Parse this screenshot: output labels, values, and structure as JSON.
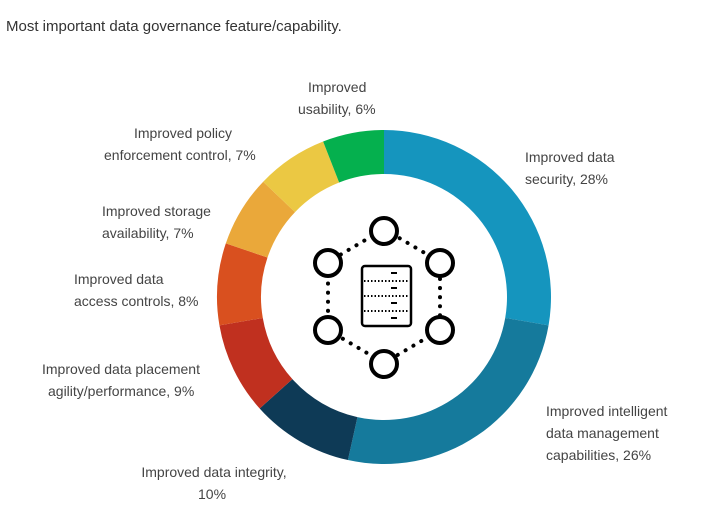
{
  "chart_data": {
    "type": "pie",
    "subtype": "donut",
    "title": "Most important data governance feature/capability.",
    "unit": "%",
    "slices": [
      {
        "label_lines": [
          "Improved data",
          "security, 28%"
        ],
        "name": "Improved data security",
        "value": 28,
        "color": "#1595be"
      },
      {
        "label_lines": [
          "Improved intelligent",
          "data management",
          "capabilities, 26%"
        ],
        "name": "Improved intelligent data management capabilities",
        "value": 26,
        "color": "#157a9c"
      },
      {
        "label_lines": [
          "Improved data integrity,",
          "10%"
        ],
        "name": "Improved data integrity",
        "value": 10,
        "color": "#0e3a56"
      },
      {
        "label_lines": [
          "Improved data placement",
          "agility/performance, 9%"
        ],
        "name": "Improved data placement agility/performance",
        "value": 9,
        "color": "#c0301f"
      },
      {
        "label_lines": [
          "Improved data",
          "access controls, 8%"
        ],
        "name": "Improved data access controls",
        "value": 8,
        "color": "#d9501f"
      },
      {
        "label_lines": [
          "Improved storage",
          "availability, 7%"
        ],
        "name": "Improved storage availability",
        "value": 7,
        "color": "#eaa83a"
      },
      {
        "label_lines": [
          "Improved policy",
          "enforcement control, 7%"
        ],
        "name": "Improved policy enforcement control",
        "value": 7,
        "color": "#ebc843"
      },
      {
        "label_lines": [
          "Improved",
          "usability, 6%"
        ],
        "name": "Improved usability",
        "value": 6,
        "color": "#05b04e"
      }
    ],
    "legend": "none",
    "center_icon": "server-network-icon"
  }
}
